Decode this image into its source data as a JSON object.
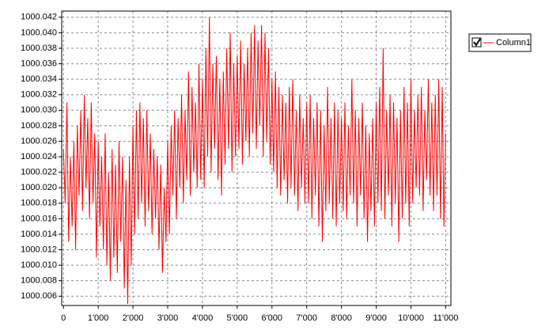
{
  "chart_data": {
    "type": "line",
    "x": [
      0,
      50,
      100,
      150,
      200,
      250,
      300,
      350,
      400,
      450,
      500,
      550,
      600,
      650,
      700,
      750,
      800,
      850,
      900,
      950,
      1000,
      1050,
      1100,
      1150,
      1200,
      1250,
      1300,
      1350,
      1400,
      1450,
      1500,
      1550,
      1600,
      1650,
      1700,
      1750,
      1800,
      1850,
      1900,
      1950,
      2000,
      2050,
      2100,
      2150,
      2200,
      2250,
      2300,
      2350,
      2400,
      2450,
      2500,
      2550,
      2600,
      2650,
      2700,
      2750,
      2800,
      2850,
      2900,
      2950,
      3000,
      3050,
      3100,
      3150,
      3200,
      3250,
      3300,
      3350,
      3400,
      3450,
      3500,
      3550,
      3600,
      3650,
      3700,
      3750,
      3800,
      3850,
      3900,
      3950,
      4000,
      4050,
      4100,
      4150,
      4200,
      4250,
      4300,
      4350,
      4400,
      4450,
      4500,
      4550,
      4600,
      4650,
      4700,
      4750,
      4800,
      4850,
      4900,
      4950,
      5000,
      5050,
      5100,
      5150,
      5200,
      5250,
      5300,
      5350,
      5400,
      5450,
      5500,
      5550,
      5600,
      5650,
      5700,
      5750,
      5800,
      5850,
      5900,
      5950,
      6000,
      6050,
      6100,
      6150,
      6200,
      6250,
      6300,
      6350,
      6400,
      6450,
      6500,
      6550,
      6600,
      6650,
      6700,
      6750,
      6800,
      6850,
      6900,
      6950,
      7000,
      7050,
      7100,
      7150,
      7200,
      7250,
      7300,
      7350,
      7400,
      7450,
      7500,
      7550,
      7600,
      7650,
      7700,
      7750,
      7800,
      7850,
      7900,
      7950,
      8000,
      8050,
      8100,
      8150,
      8200,
      8250,
      8300,
      8350,
      8400,
      8450,
      8500,
      8550,
      8600,
      8650,
      8700,
      8750,
      8800,
      8850,
      8900,
      8950,
      9000,
      9050,
      9100,
      9150,
      9200,
      9250,
      9300,
      9350,
      9400,
      9450,
      9500,
      9550,
      9600,
      9650,
      9700,
      9750,
      9800,
      9850,
      9900,
      9950,
      10000,
      10050,
      10100,
      10150,
      10200,
      10250,
      10300,
      10350,
      10400,
      10450,
      10500,
      10550,
      10600,
      10650,
      10700,
      10750,
      10800,
      10850,
      10900,
      10950,
      11000
    ],
    "series": [
      {
        "name": "Column1",
        "color": "#ff0000",
        "values": [
          1000.025,
          1000.018,
          1000.031,
          1000.013,
          1000.024,
          1000.015,
          1000.026,
          1000.012,
          1000.028,
          1000.019,
          1000.03,
          1000.017,
          1000.032,
          1000.02,
          1000.029,
          1000.016,
          1000.031,
          1000.018,
          1000.027,
          1000.011,
          1000.026,
          1000.015,
          1000.024,
          1000.012,
          1000.027,
          1000.01,
          1000.022,
          1000.008,
          1000.025,
          1000.011,
          1000.023,
          1000.009,
          1000.026,
          1000.013,
          1000.024,
          1000.007,
          1000.021,
          1000.005,
          1000.024,
          1000.01,
          1000.028,
          1000.014,
          1000.03,
          1000.016,
          1000.031,
          1000.018,
          1000.029,
          1000.015,
          1000.03,
          1000.017,
          1000.027,
          1000.014,
          1000.025,
          1000.016,
          1000.024,
          1000.012,
          1000.023,
          1000.009,
          1000.02,
          1000.013,
          1000.026,
          1000.014,
          1000.028,
          1000.019,
          1000.03,
          1000.016,
          1000.029,
          1000.02,
          1000.032,
          1000.018,
          1000.03,
          1000.021,
          1000.035,
          1000.019,
          1000.033,
          1000.022,
          1000.031,
          1000.02,
          1000.036,
          1000.021,
          1000.034,
          1000.02,
          1000.038,
          1000.024,
          1000.042,
          1000.022,
          1000.036,
          1000.025,
          1000.037,
          1000.021,
          1000.034,
          1000.019,
          1000.035,
          1000.023,
          1000.038,
          1000.025,
          1000.04,
          1000.022,
          1000.036,
          1000.024,
          1000.037,
          1000.025,
          1000.039,
          1000.023,
          1000.036,
          1000.026,
          1000.038,
          1000.024,
          1000.04,
          1000.027,
          1000.041,
          1000.025,
          1000.039,
          1000.028,
          1000.041,
          1000.024,
          1000.04,
          1000.026,
          1000.038,
          1000.023,
          1000.034,
          1000.022,
          1000.035,
          1000.02,
          1000.033,
          1000.019,
          1000.032,
          1000.021,
          1000.031,
          1000.018,
          1000.033,
          1000.02,
          1000.034,
          1000.019,
          1000.03,
          1000.017,
          1000.032,
          1000.02,
          1000.029,
          1000.018,
          1000.031,
          1000.018,
          1000.032,
          1000.016,
          1000.029,
          1000.019,
          1000.031,
          1000.015,
          1000.03,
          1000.013,
          1000.028,
          1000.017,
          1000.033,
          1000.018,
          1000.029,
          1000.016,
          1000.031,
          1000.015,
          1000.03,
          1000.018,
          1000.029,
          1000.017,
          1000.031,
          1000.016,
          1000.028,
          1000.019,
          1000.034,
          1000.018,
          1000.03,
          1000.015,
          1000.029,
          1000.019,
          1000.031,
          1000.016,
          1000.028,
          1000.013,
          1000.027,
          1000.017,
          1000.029,
          1000.015,
          1000.031,
          1000.018,
          1000.033,
          1000.017,
          1000.038,
          1000.016,
          1000.03,
          1000.019,
          1000.032,
          1000.015,
          1000.031,
          1000.018,
          1000.029,
          1000.013,
          1000.03,
          1000.016,
          1000.033,
          1000.018,
          1000.031,
          1000.015,
          1000.034,
          1000.018,
          1000.03,
          1000.02,
          1000.032,
          1000.019,
          1000.033,
          1000.017,
          1000.03,
          1000.021,
          1000.034,
          1000.019,
          1000.031,
          1000.017,
          1000.032,
          1000.019,
          1000.034,
          1000.016,
          1000.033,
          1000.015,
          1000.027
        ]
      }
    ],
    "xlim": [
      -50,
      11150
    ],
    "xticks": [
      0,
      {
        "value": 1000,
        "label": "1'000"
      },
      {
        "value": 2000,
        "label": "2'000"
      },
      {
        "value": 3000,
        "label": "3'000"
      },
      {
        "value": 4000,
        "label": "4'000"
      },
      {
        "value": 5000,
        "label": "5'000"
      },
      {
        "value": 6000,
        "label": "6'000"
      },
      {
        "value": 7000,
        "label": "7'000"
      },
      {
        "value": 8000,
        "label": "8'000"
      },
      {
        "value": 9000,
        "label": "9'000"
      },
      {
        "value": 10000,
        "label": "10'000"
      },
      {
        "value": 11000,
        "label": "11'000"
      }
    ],
    "ylim": [
      1000.0048,
      1000.0428
    ],
    "yticks": [
      1000.006,
      1000.008,
      {
        "value": 1000.01,
        "label": "1000.010"
      },
      1000.012,
      1000.014,
      1000.016,
      1000.018,
      {
        "value": 1000.02,
        "label": "1000.020"
      },
      1000.022,
      1000.024,
      1000.026,
      1000.028,
      {
        "value": 1000.03,
        "label": "1000.030"
      },
      1000.032,
      1000.034,
      1000.036,
      1000.038,
      {
        "value": 1000.04,
        "label": "1000.040"
      },
      1000.042
    ],
    "grid": true,
    "legend": "upper-right"
  }
}
